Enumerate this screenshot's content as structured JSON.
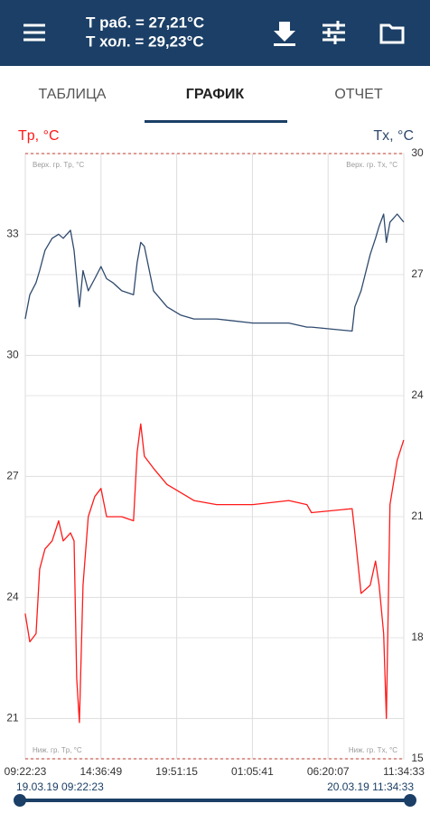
{
  "header": {
    "line1": "Т раб. = 27,21°C",
    "line2": "Т хол. = 29,23°C"
  },
  "tabs": [
    "ТАБЛИЦА",
    "ГРАФИК",
    "ОТЧЕТ"
  ],
  "chart_data": {
    "type": "line",
    "y_label": "Tр, °C",
    "y2_label": "Tх, °C",
    "annotations": [
      "Верх. гр. Tр, °C",
      "Верх. гр. Tх, °C",
      "Ниж. гр. Tр, °C",
      "Ниж. гр. Tх, °C"
    ],
    "x": [
      "2019-03-19T09:22",
      "2019-03-19T09:41",
      "2019-03-19T10:07",
      "2019-03-19T10:22",
      "2019-03-19T10:44",
      "2019-03-19T11:14",
      "2019-03-19T11:41",
      "2019-03-19T12:00",
      "2019-03-19T12:30",
      "2019-03-19T12:45",
      "2019-03-19T12:56",
      "2019-03-19T13:07",
      "2019-03-19T13:22",
      "2019-03-19T13:44",
      "2019-03-19T14:11",
      "2019-03-19T14:37",
      "2019-03-19T15:00",
      "2019-03-19T15:26",
      "2019-03-19T16:03",
      "2019-03-19T16:52",
      "2019-03-19T17:07",
      "2019-03-19T17:22",
      "2019-03-19T17:37",
      "2019-03-19T18:15",
      "2019-03-19T19:11",
      "2019-03-19T20:07",
      "2019-03-19T21:03",
      "2019-03-19T22:37",
      "2019-03-20T01:07",
      "2019-03-20T03:37",
      "2019-03-20T04:52",
      "2019-03-20T05:11",
      "2019-03-20T08:00",
      "2019-03-20T08:11",
      "2019-03-20T08:37",
      "2019-03-20T09:15",
      "2019-03-20T09:37",
      "2019-03-20T09:52",
      "2019-03-20T10:11",
      "2019-03-20T10:22",
      "2019-03-20T10:37",
      "2019-03-20T11:07",
      "2019-03-20T11:34"
    ],
    "series": [
      {
        "color": "#ff1a1a",
        "values": [
          23.6,
          22.9,
          23.1,
          24.7,
          25.2,
          25.4,
          25.9,
          25.4,
          25.6,
          25.4,
          22.0,
          20.9,
          24.3,
          26.0,
          26.5,
          26.7,
          26.0,
          26.0,
          26.0,
          25.9,
          27.6,
          28.3,
          27.5,
          27.2,
          26.8,
          26.6,
          26.4,
          26.3,
          26.3,
          26.4,
          26.3,
          26.1,
          26.2,
          25.6,
          24.1,
          24.3,
          24.9,
          24.3,
          23.1,
          21.0,
          26.3,
          27.4,
          27.9
        ]
      },
      {
        "color": "#2f4a6e",
        "axis": "y2",
        "values": [
          25.9,
          26.5,
          26.8,
          27.1,
          27.6,
          27.9,
          28.0,
          27.9,
          28.1,
          27.6,
          26.9,
          26.2,
          27.1,
          26.6,
          26.9,
          27.2,
          26.9,
          26.8,
          26.6,
          26.5,
          27.3,
          27.8,
          27.7,
          26.6,
          26.2,
          26.0,
          25.9,
          25.9,
          25.8,
          25.8,
          25.7,
          25.7,
          25.6,
          26.2,
          26.6,
          27.5,
          27.9,
          28.2,
          28.5,
          27.8,
          28.3,
          28.5,
          28.3
        ]
      }
    ],
    "xlim": [
      "2019-03-19T09:22:23",
      "2019-03-20T11:34:33"
    ],
    "xticks": [
      {
        "value": "2019-03-19T09:22:23",
        "label": "09:22:23"
      },
      {
        "value": "2019-03-19T14:36:49",
        "label": "14:36:49"
      },
      {
        "value": "2019-03-19T19:51:15",
        "label": "19:51:15"
      },
      {
        "value": "2019-03-20T01:05:41",
        "label": "01:05:41"
      },
      {
        "value": "2019-03-20T06:20:07",
        "label": "06:20:07"
      },
      {
        "value": "2019-03-20T11:34:33",
        "label": "11:34:33"
      }
    ],
    "ylim": [
      20,
      35
    ],
    "yticks": [
      21,
      24,
      27,
      30,
      33
    ],
    "y2lim": [
      15,
      30
    ],
    "y2ticks": [
      15,
      18,
      21,
      24,
      27,
      30
    ],
    "grid": true
  },
  "range": {
    "start": "19.03.19 09:22:23",
    "end": "20.03.19 11:34:33"
  }
}
